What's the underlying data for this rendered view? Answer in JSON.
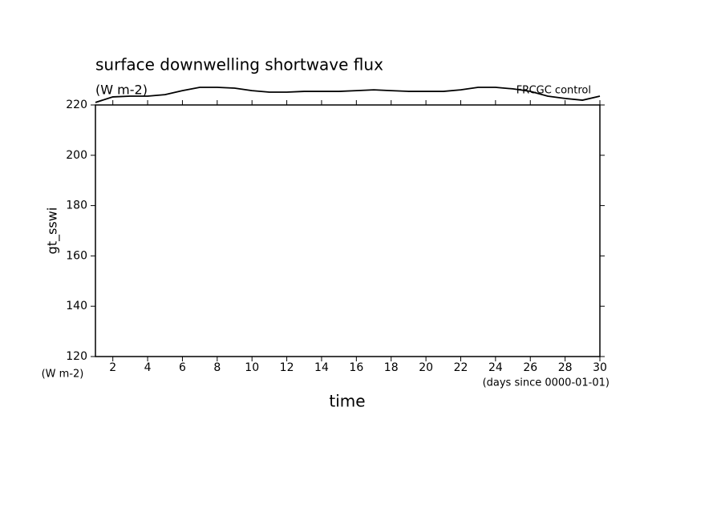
{
  "chart_data": {
    "type": "line",
    "title": "surface downwelling shortwave flux",
    "subtitle": "(W m-2)",
    "annotation": "FRCGC  control",
    "ylabel": "gt_sswi",
    "yunits": "(W m-2)",
    "xlabel": "time",
    "xunits": "(days since 0000-01-01)",
    "x": [
      1,
      2,
      3,
      4,
      5,
      6,
      7,
      8,
      9,
      10,
      11,
      12,
      13,
      14,
      15,
      16,
      17,
      18,
      19,
      20,
      21,
      22,
      23,
      24,
      25,
      26,
      27,
      28,
      29,
      30
    ],
    "series": [
      {
        "name": "gt_sswi",
        "color": "#000000",
        "values": [
          221.0,
          223.2,
          223.5,
          223.5,
          224.1,
          225.7,
          227.0,
          227.0,
          226.7,
          225.7,
          225.1,
          225.1,
          225.4,
          225.4,
          225.4,
          225.7,
          226.0,
          225.7,
          225.4,
          225.4,
          225.4,
          226.0,
          227.0,
          227.0,
          226.4,
          225.4,
          223.5,
          222.6,
          221.9,
          223.5
        ]
      }
    ],
    "xlim": [
      1,
      30
    ],
    "xticks": [
      2,
      4,
      6,
      8,
      10,
      12,
      14,
      16,
      18,
      20,
      22,
      24,
      26,
      28,
      30
    ],
    "ylim": [
      120,
      220
    ],
    "yticks": [
      120,
      140,
      160,
      180,
      200,
      220
    ],
    "grid": false
  }
}
